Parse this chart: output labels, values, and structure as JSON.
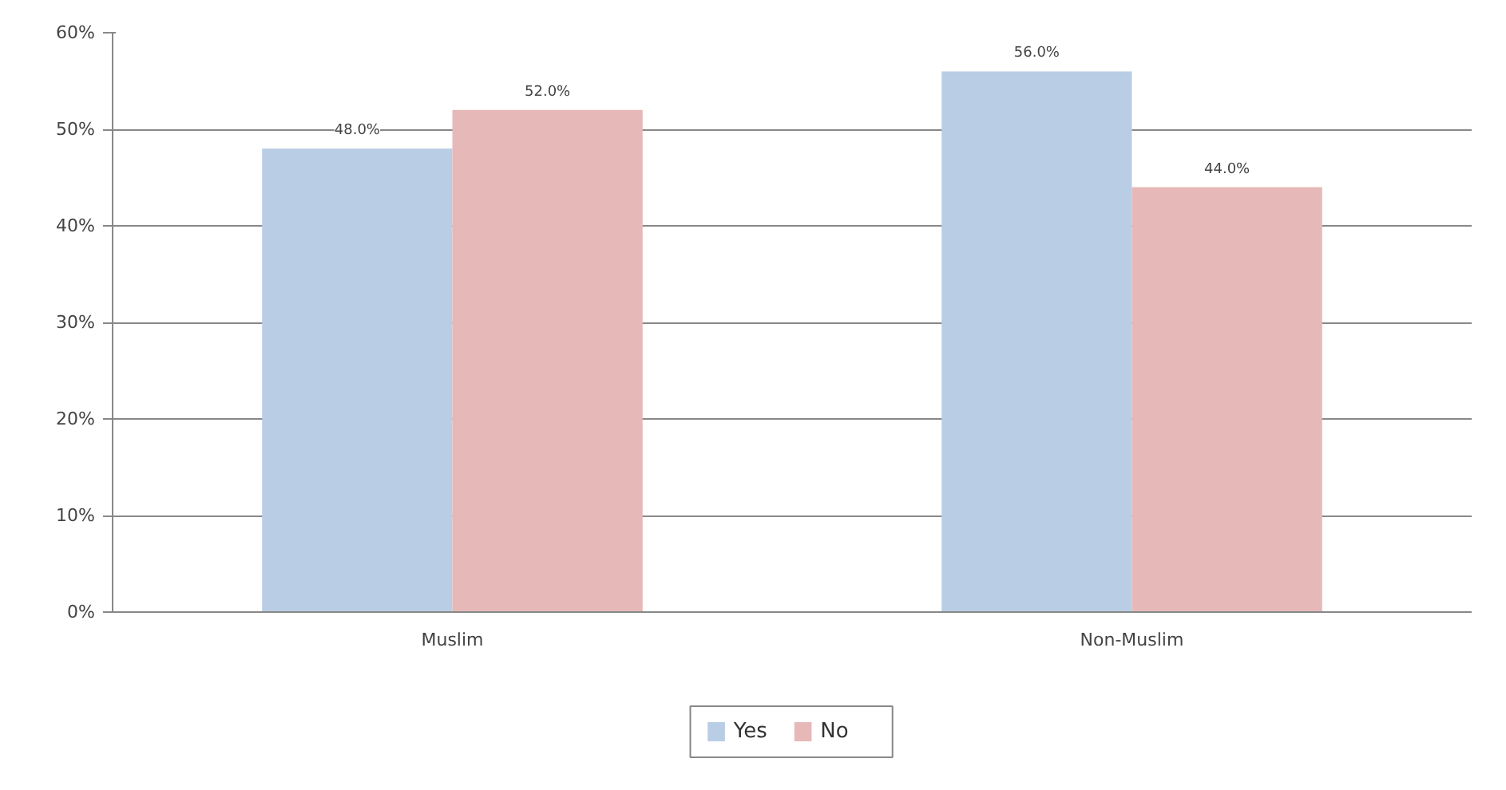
{
  "chart_data": {
    "type": "bar",
    "categories": [
      "Muslim",
      "Non-Muslim"
    ],
    "series": [
      {
        "name": "Yes",
        "color": "#b9cde5",
        "values": [
          48,
          56
        ],
        "value_labels": [
          "48.0%",
          "56.0%"
        ]
      },
      {
        "name": "No",
        "color": "#e6b9b8",
        "values": [
          52,
          44
        ],
        "value_labels": [
          "52.0%",
          "44.0%"
        ]
      }
    ],
    "ylim": [
      0,
      60
    ],
    "yticks": [
      {
        "value": 0,
        "label": "0%"
      },
      {
        "value": 10,
        "label": "10%"
      },
      {
        "value": 20,
        "label": "20%"
      },
      {
        "value": 30,
        "label": "30%"
      },
      {
        "value": 40,
        "label": "40%"
      },
      {
        "value": 50,
        "label": "50%"
      },
      {
        "value": 60,
        "label": "60%"
      }
    ],
    "grid": "y",
    "legend": "bottom"
  }
}
